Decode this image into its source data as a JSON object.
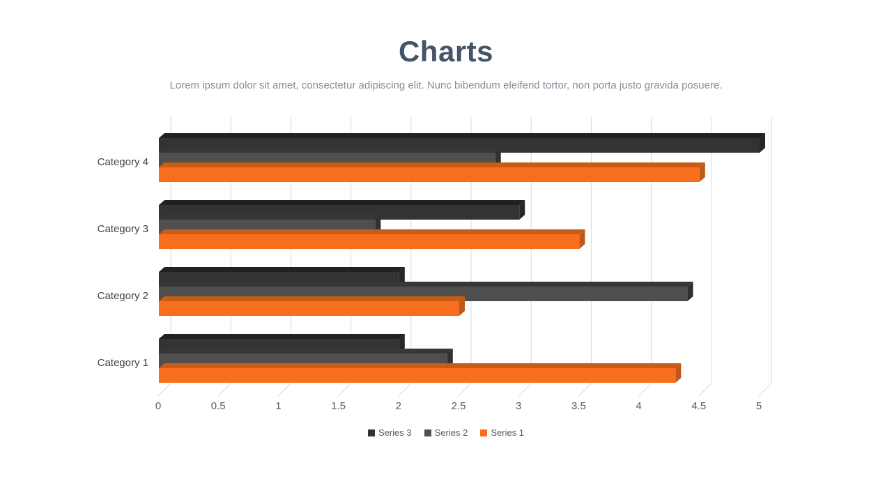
{
  "header": {
    "title": "Charts",
    "subtitle": "Lorem ipsum dolor sit amet, consectetur adipiscing elit. Nunc bibendum eleifend tortor, non porta justo gravida posuere."
  },
  "chart_data": {
    "type": "bar",
    "orientation": "horizontal",
    "style": "3d-bevel",
    "title": "Charts",
    "categories_top_to_bottom": [
      "Category 4",
      "Category 3",
      "Category 2",
      "Category 1"
    ],
    "series": [
      {
        "name": "Series 3",
        "color": "#333333",
        "color_top": "#212121",
        "color_side": "#262626",
        "values": [
          5.0,
          3.0,
          2.0,
          2.0
        ]
      },
      {
        "name": "Series 2",
        "color": "#4F4F4F",
        "color_top": "#373737",
        "color_side": "#303030",
        "values": [
          2.8,
          1.8,
          4.4,
          2.4
        ]
      },
      {
        "name": "Series 1",
        "color": "#F96E1E",
        "color_top": "#C75C15",
        "color_side": "#BE5A17",
        "values": [
          4.5,
          3.5,
          2.5,
          4.3
        ]
      }
    ],
    "x_axis": {
      "ticks": [
        "0",
        "0.5",
        "1",
        "1.5",
        "2",
        "2.5",
        "3",
        "3.5",
        "4",
        "4.5",
        "5"
      ],
      "min": 0,
      "max": 5
    },
    "legend": {
      "position": "bottom",
      "items": [
        "Series 3",
        "Series 2",
        "Series 1"
      ]
    },
    "grid": "vertical",
    "colors": {
      "gridline": "#D9D9D9",
      "tick_label": "#595959",
      "category_label": "#3F3F3F",
      "legend_label": "#595959",
      "title": "#445469",
      "subtitle": "#848E98"
    }
  }
}
